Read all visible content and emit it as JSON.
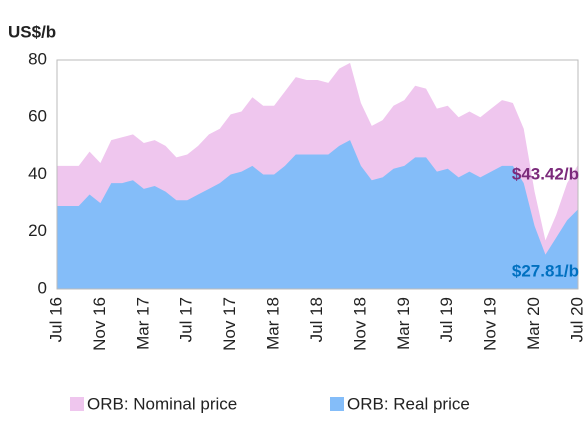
{
  "chart_data": {
    "type": "area",
    "y_label": "US$/b",
    "categories": [
      "Jul 16",
      null,
      null,
      null,
      "Nov 16",
      null,
      null,
      null,
      "Mar 17",
      null,
      null,
      null,
      "Jul 17",
      null,
      null,
      null,
      "Nov 17",
      null,
      null,
      null,
      "Mar 18",
      null,
      null,
      null,
      "Jul 18",
      null,
      null,
      null,
      "Nov 18",
      null,
      null,
      null,
      "Mar 19",
      null,
      null,
      null,
      "Jul 19",
      null,
      null,
      null,
      "Nov 19",
      null,
      null,
      null,
      "Mar 20",
      null,
      null,
      null,
      "Jul 20"
    ],
    "series": [
      {
        "name": "ORB: Nominal price",
        "color": "#efc6ee",
        "values": [
          43,
          43,
          43,
          48,
          44,
          52,
          53,
          54,
          51,
          52,
          50,
          46,
          47,
          50,
          54,
          56,
          61,
          62,
          67,
          64,
          64,
          69,
          74,
          73,
          73,
          72,
          77,
          79,
          65,
          57,
          59,
          64,
          66,
          71,
          70,
          63,
          64,
          60,
          62,
          60,
          63,
          66,
          65,
          56,
          34,
          17,
          26,
          37,
          43.42
        ]
      },
      {
        "name": "ORB: Real price",
        "color": "#84bdf9",
        "values": [
          29,
          29,
          29,
          33,
          30,
          37,
          37,
          38,
          35,
          36,
          34,
          31,
          31,
          33,
          35,
          37,
          40,
          41,
          43,
          40,
          40,
          43,
          47,
          47,
          47,
          47,
          50,
          52,
          43,
          38,
          39,
          42,
          43,
          46,
          46,
          41,
          42,
          39,
          41,
          39,
          41,
          43,
          43,
          37,
          22,
          12,
          18,
          24,
          27.81
        ]
      }
    ],
    "annotations": [
      {
        "text": "$43.42/b",
        "color": "#7b2a7b"
      },
      {
        "text": "$27.81/b",
        "color": "#0070c0"
      }
    ],
    "ylim": [
      0,
      80
    ],
    "yticks": [
      0,
      20,
      40,
      60,
      80
    ],
    "grid": false
  }
}
